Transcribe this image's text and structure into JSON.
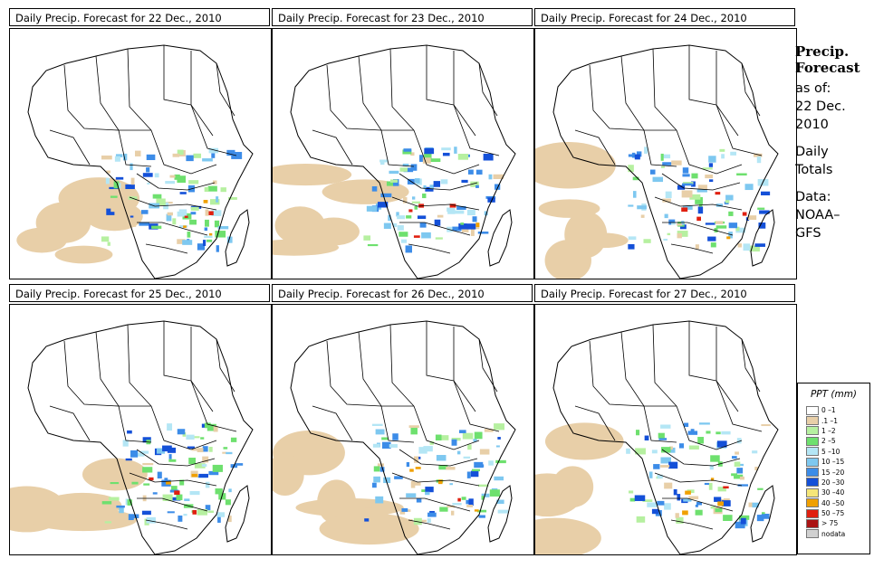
{
  "panels": [
    {
      "title": "Daily Precip. Forecast for  22 Dec., 2010"
    },
    {
      "title": "Daily Precip. Forecast for  23 Dec., 2010"
    },
    {
      "title": "Daily Precip. Forecast for  24 Dec., 2010"
    },
    {
      "title": "Daily Precip. Forecast for  25 Dec., 2010"
    },
    {
      "title": "Daily Precip. Forecast for  26 Dec., 2010"
    },
    {
      "title": "Daily Precip. Forecast for  27 Dec., 2010"
    }
  ],
  "sidebar": {
    "title_line1": "Precip.",
    "title_line2": "Forecast",
    "asof_label": "as of:",
    "asof_date1": "22 Dec.",
    "asof_date2": "2010",
    "daily1": "Daily",
    "daily2": "Totals",
    "data_label": "Data:",
    "data_src1": "NOAA–",
    "data_src2": "GFS"
  },
  "legend": {
    "title": "PPT (mm)",
    "items": [
      {
        "label": "0 –1",
        "color": "#ffffff"
      },
      {
        "label": ".1 –1",
        "color": "#e8cfa8"
      },
      {
        "label": "1 –2",
        "color": "#b6f0a0"
      },
      {
        "label": "2 –5",
        "color": "#6ee06e"
      },
      {
        "label": "5 –10",
        "color": "#b4e6f5"
      },
      {
        "label": "10 –15",
        "color": "#7ec8f0"
      },
      {
        "label": "15 –20",
        "color": "#3c8ce8"
      },
      {
        "label": "20 –30",
        "color": "#1450d8"
      },
      {
        "label": "30 –40",
        "color": "#f5e678"
      },
      {
        "label": "40 –50",
        "color": "#f0a000"
      },
      {
        "label": "50 –75",
        "color": "#e02010"
      },
      {
        "label": "> 75",
        "color": "#aa1414"
      },
      {
        "label": "nodata",
        "color": "#d0d0d0"
      }
    ]
  }
}
